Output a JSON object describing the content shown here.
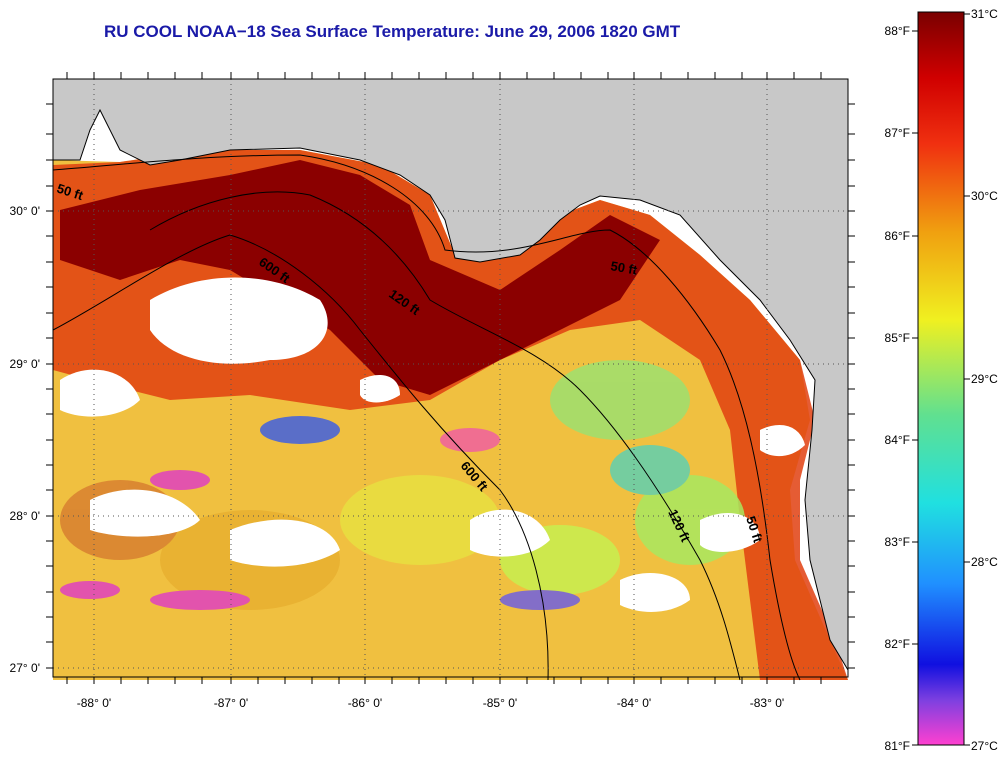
{
  "title": "RU COOL  NOAA−18  Sea Surface Temperature:  June 29, 2006 1820 GMT",
  "map": {
    "lon_labels": [
      "-88° 0'",
      "-87° 0'",
      "-86° 0'",
      "-85° 0'",
      "-84° 0'",
      "-83° 0'"
    ],
    "lat_labels": [
      "30° 0'",
      "29° 0'",
      "28° 0'",
      "27° 0'"
    ],
    "contours": [
      "50 ft",
      "600 ft",
      "120 ft",
      "50 ft",
      "600 ft",
      "120 ft",
      "50 ft"
    ],
    "colors": {
      "land": "#c8c8c8",
      "cloud": "#ffffff",
      "hot": "#8b0000",
      "warm": "#e8400a",
      "mid": "#f0a020",
      "cool": "#e8e84a",
      "cold": "#60d0a0"
    }
  },
  "colorbar": {
    "f_labels": [
      "88°F",
      "87°F",
      "86°F",
      "85°F",
      "84°F",
      "83°F",
      "82°F",
      "81°F"
    ],
    "c_labels": [
      "31°C",
      "30°C",
      "29°C",
      "28°C",
      "27°C"
    ]
  }
}
